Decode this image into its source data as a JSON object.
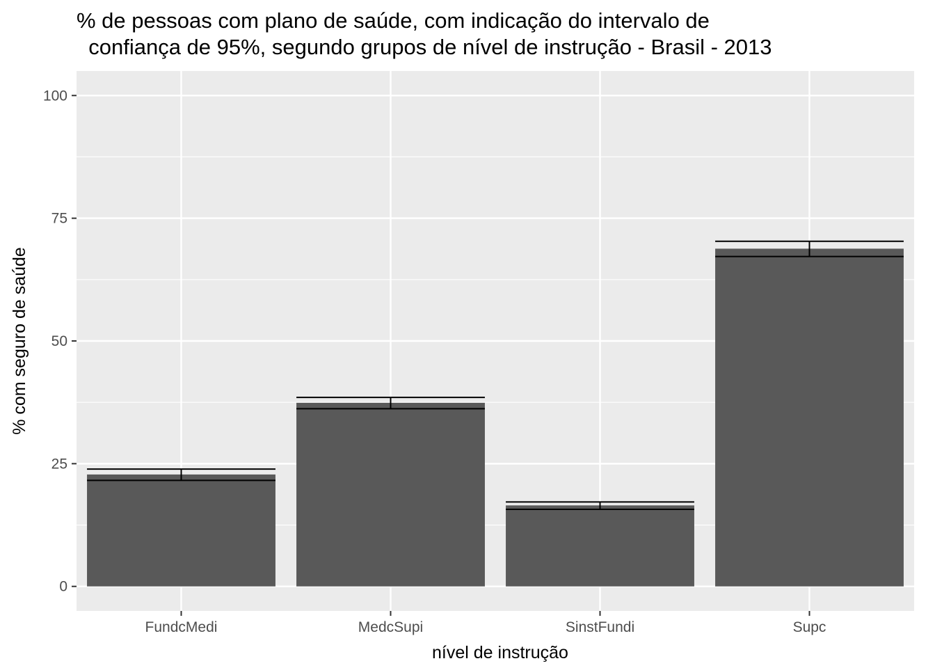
{
  "chart_data": {
    "type": "bar",
    "title_lines": [
      "% de pessoas com plano de saúde, com indicação do intervalo de",
      "  confiança de 95%, segundo grupos de nível de instrução - Brasil - 2013"
    ],
    "xlabel": "nível de instrução",
    "ylabel": "% com seguro de saúde",
    "categories": [
      "FundcMedi",
      "MedcSupi",
      "SinstFundi",
      "Supc"
    ],
    "values": [
      22.8,
      37.4,
      16.5,
      68.8
    ],
    "ci_lower": [
      21.6,
      36.2,
      15.7,
      67.2
    ],
    "ci_upper": [
      23.9,
      38.5,
      17.2,
      70.3
    ],
    "ylim": [
      -5,
      105
    ],
    "yticks": [
      0,
      25,
      50,
      75,
      100
    ],
    "ytick_labels": [
      "0",
      "25",
      "50",
      "75",
      "100"
    ],
    "grid": true,
    "legend": "none",
    "colors": {
      "panel": "#ebebeb",
      "grid": "#ffffff",
      "bar": "#595959",
      "errorbar": "#000000",
      "tick_text": "#4d4d4d",
      "tick_mark": "#333333"
    }
  }
}
